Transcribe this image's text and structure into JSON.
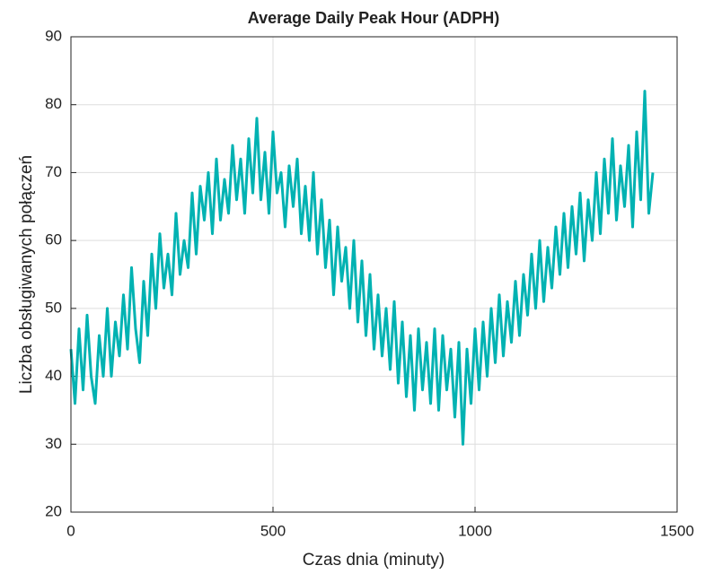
{
  "chart_data": {
    "type": "line",
    "title": "Average Daily Peak Hour (ADPH)",
    "x_label": "Czas dnia (minuty)",
    "y_label": "Liczba obsługiwanych połączeń",
    "xlim": [
      0,
      1500
    ],
    "ylim": [
      20,
      90
    ],
    "xticks": [
      0,
      500,
      1000,
      1500
    ],
    "yticks": [
      20,
      30,
      40,
      50,
      60,
      70,
      80,
      90
    ],
    "grid": true,
    "x": [
      0,
      10,
      20,
      30,
      40,
      50,
      60,
      70,
      80,
      90,
      100,
      110,
      120,
      130,
      140,
      150,
      160,
      170,
      180,
      190,
      200,
      210,
      220,
      230,
      240,
      250,
      260,
      270,
      280,
      290,
      300,
      310,
      320,
      330,
      340,
      350,
      360,
      370,
      380,
      390,
      400,
      410,
      420,
      430,
      440,
      450,
      460,
      470,
      480,
      490,
      500,
      510,
      520,
      530,
      540,
      550,
      560,
      570,
      580,
      590,
      600,
      610,
      620,
      630,
      640,
      650,
      660,
      670,
      680,
      690,
      700,
      710,
      720,
      730,
      740,
      750,
      760,
      770,
      780,
      790,
      800,
      810,
      820,
      830,
      840,
      850,
      860,
      870,
      880,
      890,
      900,
      910,
      920,
      930,
      940,
      950,
      960,
      970,
      980,
      990,
      1000,
      1010,
      1020,
      1030,
      1040,
      1050,
      1060,
      1070,
      1080,
      1090,
      1100,
      1110,
      1120,
      1130,
      1140,
      1150,
      1160,
      1170,
      1180,
      1190,
      1200,
      1210,
      1220,
      1230,
      1240,
      1250,
      1260,
      1270,
      1280,
      1290,
      1300,
      1310,
      1320,
      1330,
      1340,
      1350,
      1360,
      1370,
      1380,
      1390,
      1400,
      1410,
      1420,
      1430,
      1440
    ],
    "series": [
      {
        "color": "#00b2b2",
        "values": [
          44,
          36,
          47,
          38,
          49,
          40,
          36,
          46,
          40,
          50,
          40,
          48,
          43,
          52,
          44,
          56,
          47,
          42,
          54,
          46,
          58,
          50,
          61,
          53,
          58,
          52,
          64,
          55,
          60,
          56,
          67,
          58,
          68,
          63,
          70,
          61,
          72,
          63,
          69,
          64,
          74,
          66,
          72,
          64,
          75,
          67,
          78,
          66,
          73,
          64,
          76,
          67,
          70,
          62,
          71,
          65,
          72,
          61,
          68,
          60,
          70,
          58,
          66,
          56,
          63,
          52,
          62,
          54,
          59,
          50,
          60,
          48,
          57,
          46,
          55,
          44,
          52,
          43,
          50,
          41,
          51,
          39,
          48,
          37,
          46,
          35,
          47,
          38,
          45,
          36,
          47,
          35,
          46,
          38,
          44,
          34,
          45,
          30,
          44,
          36,
          47,
          38,
          48,
          40,
          50,
          42,
          52,
          43,
          51,
          45,
          54,
          46,
          55,
          49,
          58,
          50,
          60,
          51,
          59,
          53,
          62,
          55,
          64,
          56,
          65,
          58,
          67,
          57,
          66,
          60,
          70,
          61,
          72,
          64,
          75,
          63,
          71,
          65,
          74,
          62,
          76,
          66,
          82,
          64,
          70
        ]
      }
    ]
  }
}
